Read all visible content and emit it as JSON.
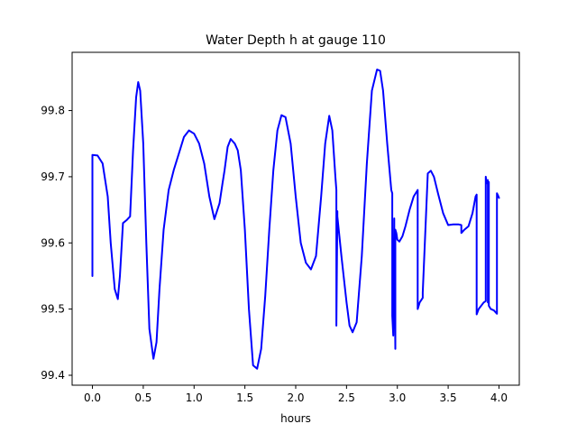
{
  "chart_data": {
    "type": "line",
    "title": "Water Depth h at gauge 110",
    "xlabel": "hours",
    "ylabel": "",
    "xlim": [
      -0.2,
      4.2
    ],
    "ylim": [
      99.385,
      99.888
    ],
    "xticks": [
      0.0,
      0.5,
      1.0,
      1.5,
      2.0,
      2.5,
      3.0,
      3.5,
      4.0
    ],
    "xtick_labels": [
      "0.0",
      "0.5",
      "1.0",
      "1.5",
      "2.0",
      "2.5",
      "3.0",
      "3.5",
      "4.0"
    ],
    "yticks": [
      99.4,
      99.5,
      99.6,
      99.7,
      99.8
    ],
    "ytick_labels": [
      "99.4",
      "99.5",
      "99.6",
      "99.7",
      "99.8"
    ],
    "grid": false,
    "line_color": "#0000ff",
    "series": [
      {
        "x": [
          0.0,
          0.0,
          0.05,
          0.1,
          0.15,
          0.18,
          0.22,
          0.25,
          0.27,
          0.3,
          0.34,
          0.37,
          0.4,
          0.43,
          0.45,
          0.47,
          0.5,
          0.53,
          0.56,
          0.6,
          0.63,
          0.66,
          0.7,
          0.75,
          0.8,
          0.85,
          0.9,
          0.95,
          1.0,
          1.05,
          1.1,
          1.15,
          1.2,
          1.25,
          1.28,
          1.3,
          1.33,
          1.36,
          1.4,
          1.43,
          1.46,
          1.5,
          1.54,
          1.58,
          1.62,
          1.66,
          1.7,
          1.74,
          1.78,
          1.82,
          1.86,
          1.9,
          1.95,
          2.0,
          2.05,
          2.1,
          2.15,
          2.2,
          2.25,
          2.29,
          2.33,
          2.36,
          2.39,
          2.4,
          2.4,
          2.41,
          2.41,
          2.45,
          2.5,
          2.53,
          2.56,
          2.6,
          2.65,
          2.7,
          2.75,
          2.8,
          2.83,
          2.86,
          2.9,
          2.94,
          2.95,
          2.95,
          2.96,
          2.97,
          2.97,
          2.98,
          2.98,
          2.98,
          2.99,
          3.0,
          3.02,
          3.05,
          3.08,
          3.12,
          3.16,
          3.2,
          3.2,
          3.22,
          3.25,
          3.25,
          3.3,
          3.33,
          3.36,
          3.4,
          3.45,
          3.5,
          3.55,
          3.6,
          3.63,
          3.63,
          3.66,
          3.7,
          3.74,
          3.77,
          3.78,
          3.78,
          3.8,
          3.85,
          3.87,
          3.87,
          3.88,
          3.89,
          3.89,
          3.9,
          3.9,
          3.92,
          3.95,
          3.98,
          3.98,
          3.99,
          4.0
        ],
        "y": [
          99.55,
          99.733,
          99.732,
          99.72,
          99.67,
          99.6,
          99.53,
          99.515,
          99.55,
          99.63,
          99.635,
          99.64,
          99.74,
          99.82,
          99.843,
          99.83,
          99.75,
          99.6,
          99.47,
          99.425,
          99.45,
          99.53,
          99.62,
          99.68,
          99.71,
          99.735,
          99.76,
          99.77,
          99.765,
          99.75,
          99.72,
          99.67,
          99.636,
          99.66,
          99.69,
          99.71,
          99.745,
          99.757,
          99.75,
          99.74,
          99.71,
          99.62,
          99.5,
          99.415,
          99.41,
          99.44,
          99.52,
          99.62,
          99.71,
          99.77,
          99.793,
          99.79,
          99.75,
          99.67,
          99.6,
          99.57,
          99.56,
          99.58,
          99.67,
          99.75,
          99.792,
          99.77,
          99.7,
          99.68,
          99.475,
          99.648,
          99.64,
          99.58,
          99.51,
          99.475,
          99.465,
          99.48,
          99.58,
          99.72,
          99.83,
          99.862,
          99.86,
          99.83,
          99.75,
          99.68,
          99.675,
          99.49,
          99.46,
          99.637,
          99.62,
          99.44,
          99.45,
          99.62,
          99.615,
          99.605,
          99.602,
          99.61,
          99.625,
          99.65,
          99.67,
          99.68,
          99.5,
          99.51,
          99.517,
          99.525,
          99.705,
          99.709,
          99.7,
          99.675,
          99.645,
          99.627,
          99.628,
          99.628,
          99.627,
          99.615,
          99.62,
          99.625,
          99.645,
          99.67,
          99.673,
          99.492,
          99.5,
          99.51,
          99.512,
          99.7,
          99.69,
          99.695,
          99.51,
          99.692,
          99.505,
          99.5,
          99.498,
          99.493,
          99.675,
          99.672,
          99.668
        ]
      }
    ]
  }
}
